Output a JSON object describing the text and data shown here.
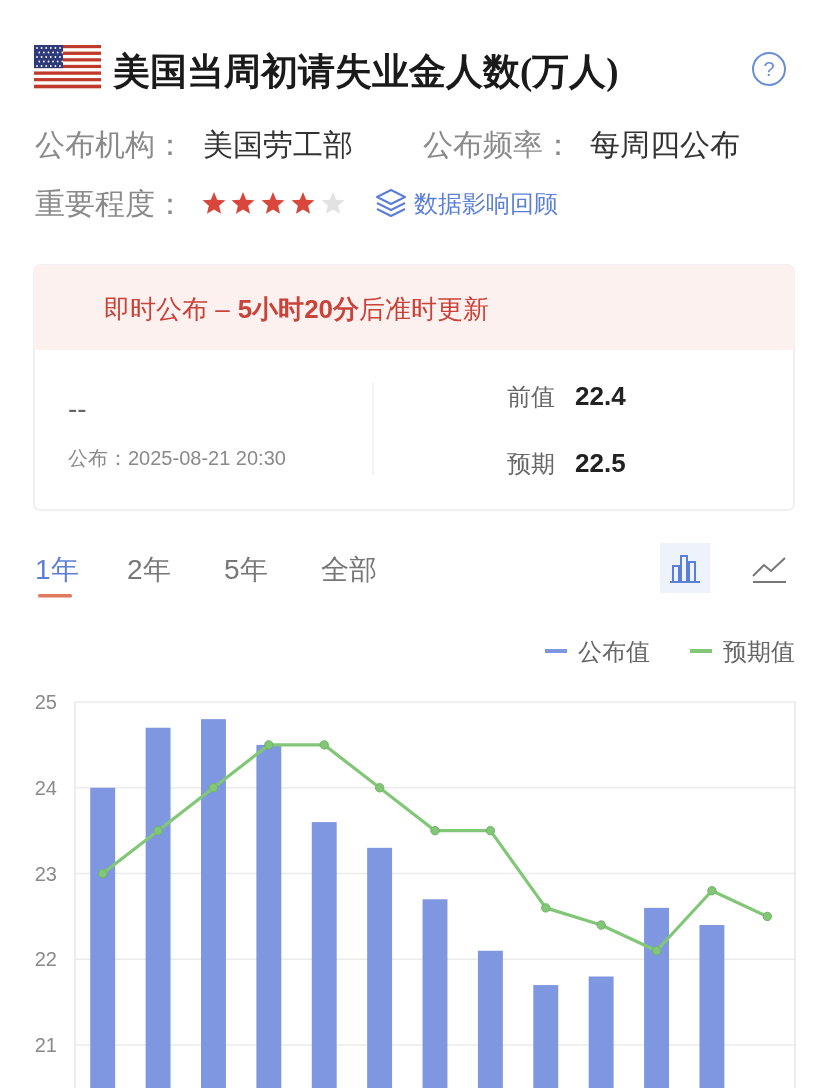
{
  "chart_data": {
    "type": "bar",
    "title": "美国当周初请失业金人数(万人)",
    "categories": [
      null,
      null,
      null,
      null,
      null,
      null,
      null,
      null,
      null,
      null,
      null,
      null,
      null
    ],
    "series": [
      {
        "name": "公布值",
        "color": "#7f97e0",
        "values": [
          24.0,
          24.7,
          24.8,
          24.5,
          23.6,
          23.3,
          22.7,
          22.1,
          21.7,
          21.8,
          22.6,
          22.4,
          null
        ]
      },
      {
        "name": "预期值",
        "type": "line",
        "color": "#82c777",
        "marker": "circle",
        "values": [
          23.0,
          23.5,
          24.0,
          24.5,
          24.5,
          24.0,
          23.5,
          23.5,
          22.6,
          22.4,
          22.1,
          22.8,
          22.5
        ]
      }
    ],
    "ylim": [
      20.5,
      25
    ],
    "yticks": [
      21,
      22,
      23,
      24,
      25
    ],
    "grid": "y",
    "legend": "top right",
    "annotations": [
      "公布机构：",
      "美国劳工部",
      "公布频率：",
      "每周四公布",
      "重要程度：",
      "数据影响回顾",
      "即时公布 –",
      "5小时20分",
      "后准时更新",
      "--",
      "公布：2025-08-21 20:30",
      "前值",
      "22.4",
      "预期",
      "22.5",
      "1年",
      "2年",
      "5年",
      "全部",
      "?"
    ]
  }
}
